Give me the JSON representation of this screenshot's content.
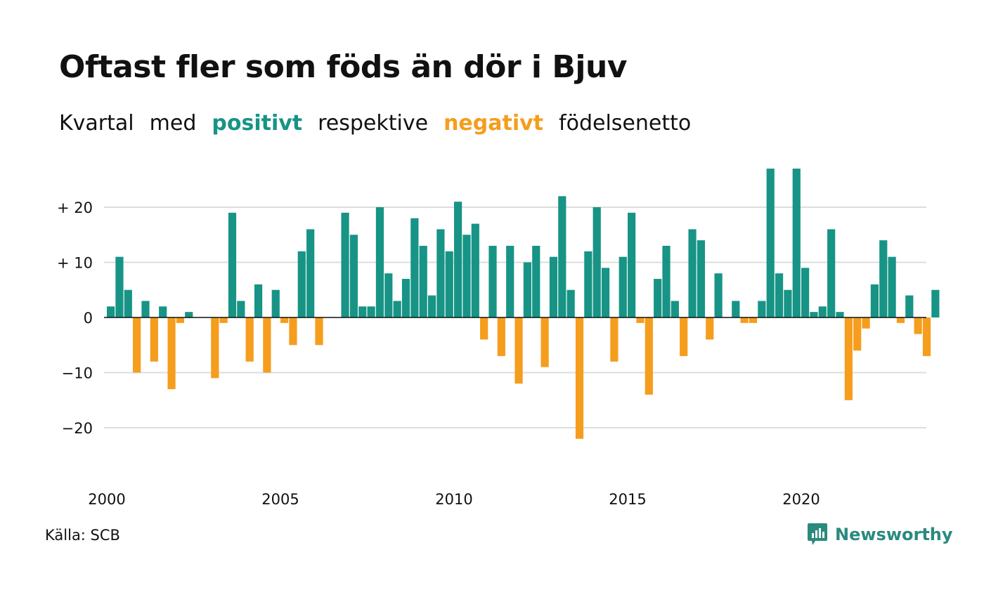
{
  "title": "Oftast fler som föds än dör i Bjuv",
  "subtitle": {
    "words": [
      "Kvartal",
      "med"
    ],
    "positive": "positivt",
    "middle": "respektive",
    "negative": "negativt",
    "end": "födelsenetto"
  },
  "source": "Källa: SCB",
  "brand": "Newsworthy",
  "colors": {
    "positive": "#179485",
    "negative": "#f59d1d",
    "grid": "#dddddd",
    "zero": "#111111",
    "brand": "#2a8a7e"
  },
  "chart_data": {
    "type": "bar",
    "x_start": "2000 Q1",
    "x_ticks": [
      "2000",
      "2005",
      "2010",
      "2015",
      "2020"
    ],
    "y_ticks": [
      {
        "value": 20,
        "label": "+ 20"
      },
      {
        "value": 10,
        "label": "+ 10"
      },
      {
        "value": 0,
        "label": "0"
      },
      {
        "value": -10,
        "label": "−10"
      },
      {
        "value": -20,
        "label": "−20"
      }
    ],
    "ylim": [
      -22,
      27
    ],
    "grid": true,
    "values": [
      2,
      11,
      5,
      -10,
      3,
      -8,
      2,
      -13,
      -1,
      1,
      0,
      0,
      -11,
      -1,
      19,
      3,
      -8,
      6,
      -10,
      5,
      -1,
      -5,
      12,
      16,
      -5,
      0,
      0,
      19,
      15,
      2,
      2,
      20,
      8,
      3,
      7,
      18,
      13,
      4,
      16,
      12,
      21,
      15,
      17,
      -4,
      13,
      -7,
      13,
      -12,
      10,
      13,
      -9,
      11,
      22,
      5,
      -22,
      12,
      20,
      9,
      -8,
      11,
      19,
      -1,
      -14,
      7,
      13,
      3,
      -7,
      16,
      14,
      -4,
      8,
      0,
      3,
      -1,
      -1,
      3,
      27,
      8,
      5,
      27,
      9,
      1,
      2,
      16,
      1,
      -15,
      -6,
      -2,
      6,
      14,
      11,
      -1,
      4,
      -3,
      -7,
      5
    ]
  }
}
